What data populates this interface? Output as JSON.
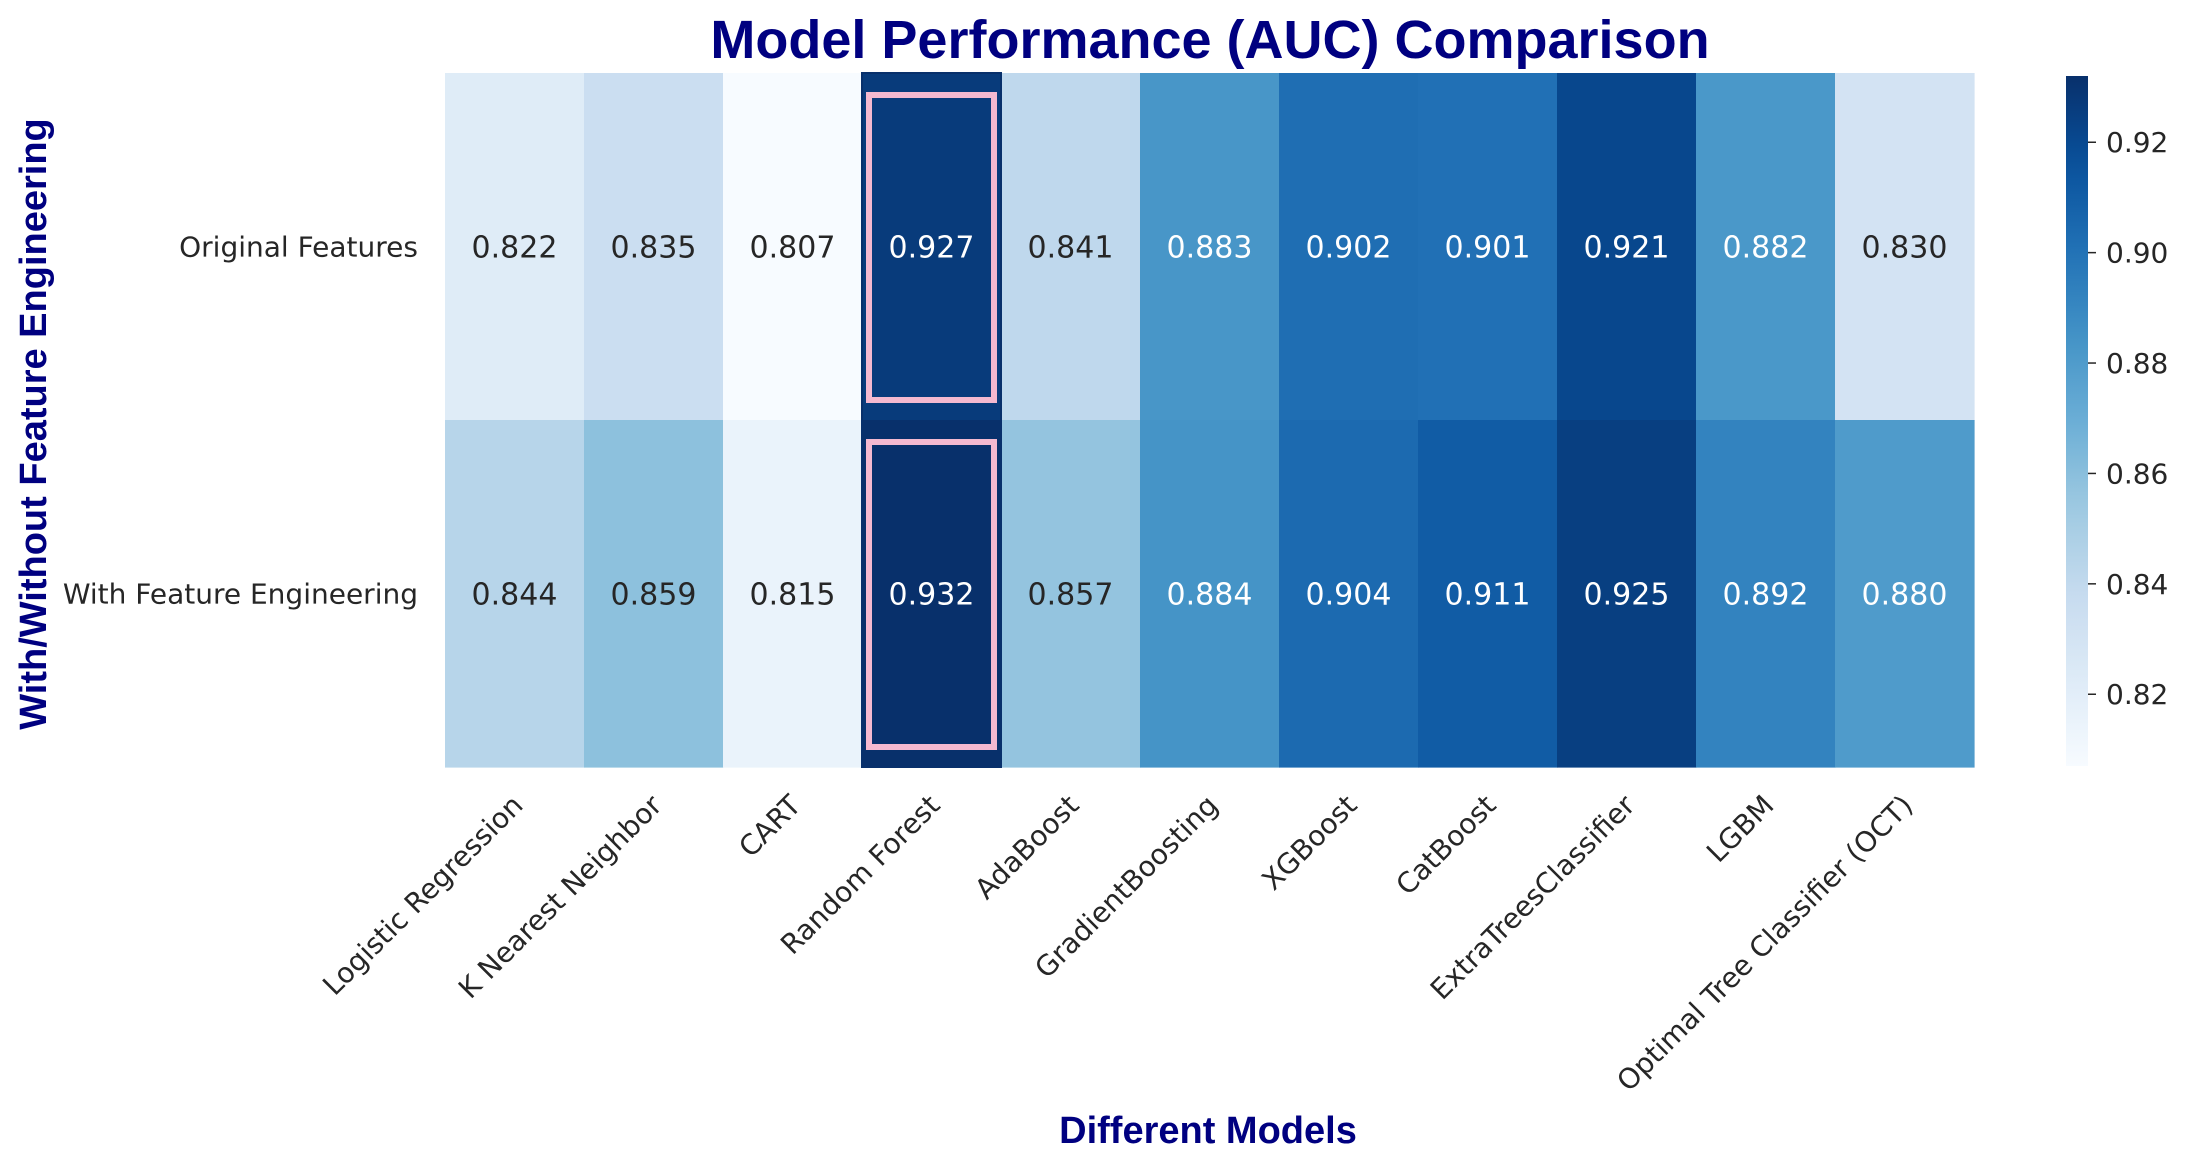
{
  "chart_data": {
    "type": "heatmap",
    "title": "Model Performance (AUC) Comparison",
    "xlabel": "Different Models",
    "ylabel": "With/Without Feature Engineering",
    "x_categories": [
      "Logistic Regression",
      "K Nearest Neighbor",
      "CART",
      "Random Forest",
      "AdaBoost",
      "GradientBoosting",
      "XGBoost",
      "CatBoost",
      "ExtraTreesClassifier",
      "LGBM",
      "Optimal Tree Classifier (OCT)"
    ],
    "y_categories": [
      "Original Features",
      "With Feature Engineering"
    ],
    "values": [
      [
        0.822,
        0.835,
        0.807,
        0.927,
        0.841,
        0.883,
        0.902,
        0.901,
        0.921,
        0.882,
        0.83
      ],
      [
        0.844,
        0.859,
        0.815,
        0.932,
        0.857,
        0.884,
        0.904,
        0.911,
        0.925,
        0.892,
        0.88
      ]
    ],
    "value_labels": [
      [
        "0.822",
        "0.835",
        "0.807",
        "0.927",
        "0.841",
        "0.883",
        "0.902",
        "0.901",
        "0.921",
        "0.882",
        "0.830"
      ],
      [
        "0.844",
        "0.859",
        "0.815",
        "0.932",
        "0.857",
        "0.884",
        "0.904",
        "0.911",
        "0.925",
        "0.892",
        "0.880"
      ]
    ],
    "highlighted_column": "Random Forest",
    "highlight_color": "#f4b9d0",
    "colormap": "Blues",
    "colorbar": {
      "range": [
        0.807,
        0.932
      ],
      "ticks": [
        0.82,
        0.84,
        0.86,
        0.88,
        0.9,
        0.92
      ],
      "tick_labels": [
        "0.82",
        "0.84",
        "0.86",
        "0.88",
        "0.90",
        "0.92"
      ]
    },
    "colors": {
      "title": "#000080",
      "text_light": "#ffffff",
      "text_dark": "#262626"
    }
  }
}
